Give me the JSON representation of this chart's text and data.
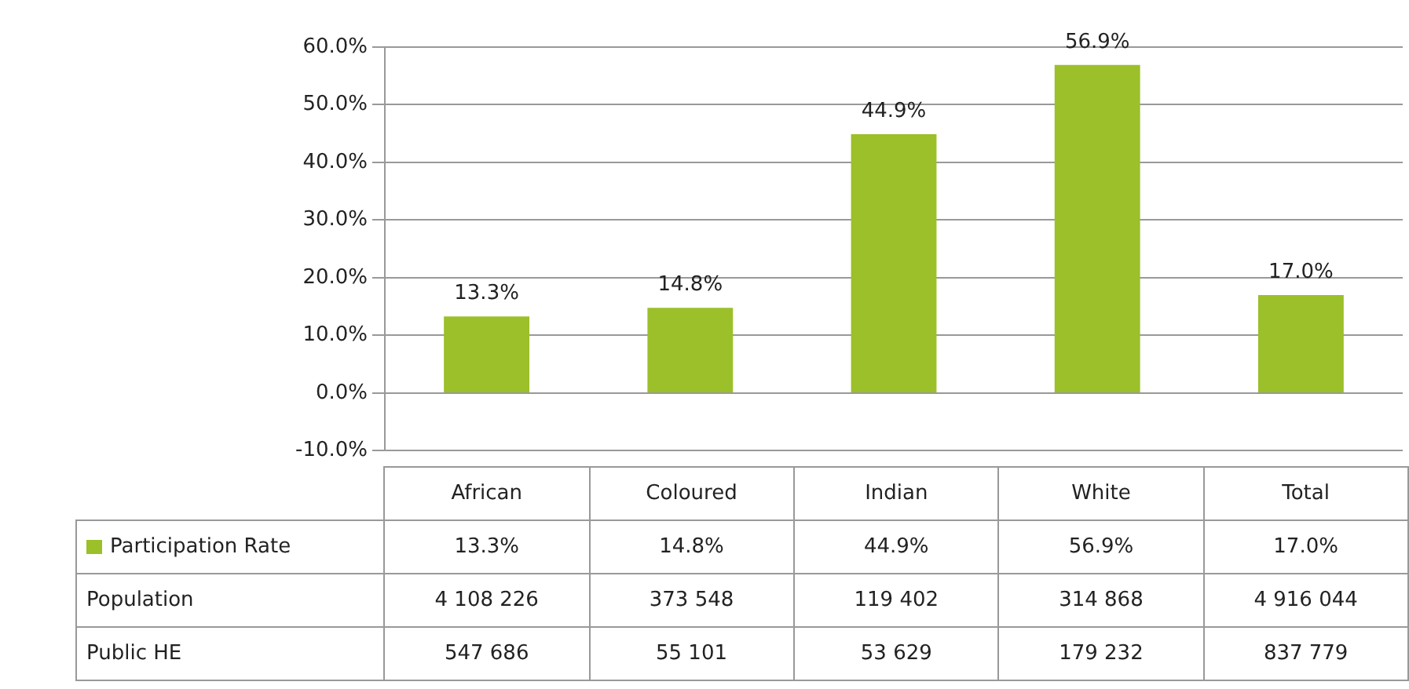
{
  "chart_data": {
    "type": "bar",
    "categories": [
      "African",
      "Coloured",
      "Indian",
      "White",
      "Total"
    ],
    "series": [
      {
        "name": "Participation Rate",
        "color": "#9bc02a",
        "values": [
          13.3,
          14.8,
          44.9,
          56.9,
          17.0
        ],
        "value_labels": [
          "13.3%",
          "14.8%",
          "44.9%",
          "56.9%",
          "17.0%"
        ]
      }
    ],
    "ylim": [
      -10,
      60
    ],
    "yticks": [
      {
        "value": -10,
        "label": "-10.0%"
      },
      {
        "value": 0,
        "label": "0.0%"
      },
      {
        "value": 10,
        "label": "10.0%"
      },
      {
        "value": 20,
        "label": "20.0%"
      },
      {
        "value": 30,
        "label": "30.0%"
      },
      {
        "value": 40,
        "label": "40.0%"
      },
      {
        "value": 50,
        "label": "50.0%"
      },
      {
        "value": 60,
        "label": "60.0%"
      }
    ],
    "grid": "y",
    "legend": "bottom",
    "annotations": [
      "Population",
      "4 108 226",
      "373 548",
      "119 402",
      "314 868",
      "4 916 044",
      "Public HE",
      "547 686",
      "55 101",
      "53 629",
      "179 232",
      "837 779"
    ]
  }
}
